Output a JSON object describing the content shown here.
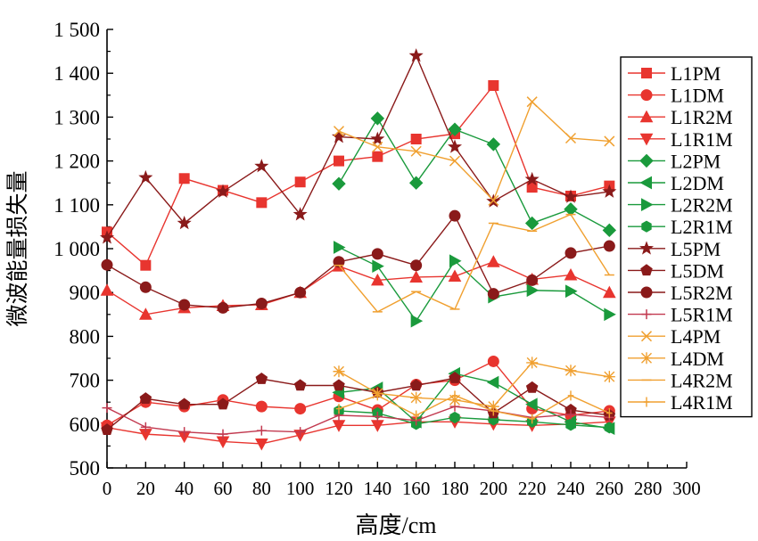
{
  "chart_data": {
    "type": "line",
    "title": "",
    "xlabel": "高度/cm",
    "ylabel": "微波能量损失量",
    "xlim": [
      0,
      300
    ],
    "ylim": [
      500,
      1500
    ],
    "x_ticks": [
      0,
      20,
      40,
      60,
      80,
      100,
      120,
      140,
      160,
      180,
      200,
      220,
      240,
      260,
      280,
      300
    ],
    "x_tick_labels": [
      "0",
      "20",
      "40",
      "60",
      "80",
      "100",
      "120",
      "140",
      "160",
      "180",
      "200",
      "220",
      "240",
      "260",
      "280",
      "300"
    ],
    "y_ticks": [
      500,
      600,
      700,
      800,
      900,
      1000,
      1100,
      1200,
      1300,
      1400,
      1500
    ],
    "y_tick_labels": [
      "500",
      "600",
      "700",
      "800",
      "900",
      "1 000",
      "1 100",
      "1 200",
      "1 300",
      "1 400",
      "1 500"
    ],
    "grid": false,
    "legend_position": "right",
    "series": [
      {
        "name": "L1PM",
        "color": "#e8352f",
        "marker": "square",
        "x": [
          0,
          20,
          40,
          60,
          80,
          100,
          120,
          140,
          160,
          180,
          200,
          220,
          240,
          260
        ],
        "y": [
          1038,
          962,
          1160,
          1133,
          1105,
          1152,
          1200,
          1210,
          1250,
          1262,
          1372,
          1140,
          1120,
          1143
        ]
      },
      {
        "name": "L1DM",
        "color": "#e8352f",
        "marker": "circle",
        "x": [
          0,
          20,
          40,
          60,
          80,
          100,
          120,
          140,
          160,
          180,
          200,
          220,
          240,
          260
        ],
        "y": [
          597,
          650,
          640,
          655,
          640,
          635,
          663,
          632,
          690,
          700,
          743,
          635,
          620,
          630
        ]
      },
      {
        "name": "L1R2M",
        "color": "#e8352f",
        "marker": "triangle-up",
        "x": [
          0,
          20,
          40,
          60,
          80,
          100,
          120,
          140,
          160,
          180,
          200,
          220,
          240,
          260
        ],
        "y": [
          905,
          850,
          865,
          870,
          872,
          900,
          960,
          928,
          935,
          937,
          970,
          930,
          940,
          900
        ]
      },
      {
        "name": "L1R1M",
        "color": "#e8352f",
        "marker": "triangle-down",
        "x": [
          0,
          20,
          40,
          60,
          80,
          100,
          120,
          140,
          160,
          180,
          200,
          220,
          240,
          260
        ],
        "y": [
          592,
          577,
          572,
          560,
          555,
          575,
          597,
          597,
          605,
          605,
          600,
          597,
          600,
          605
        ]
      },
      {
        "name": "L2PM",
        "color": "#1a9a3c",
        "marker": "diamond",
        "x": [
          120,
          140,
          160,
          180,
          200,
          220,
          240,
          260
        ],
        "y": [
          1148,
          1297,
          1150,
          1272,
          1238,
          1058,
          1090,
          1042
        ]
      },
      {
        "name": "L2DM",
        "color": "#1a9a3c",
        "marker": "triangle-left",
        "x": [
          120,
          140,
          160,
          180,
          200,
          220,
          240,
          260
        ],
        "y": [
          672,
          682,
          605,
          715,
          695,
          645,
          605,
          590
        ]
      },
      {
        "name": "L2R2M",
        "color": "#1a9a3c",
        "marker": "triangle-right",
        "x": [
          120,
          140,
          160,
          180,
          200,
          220,
          240,
          260
        ],
        "y": [
          1003,
          960,
          835,
          972,
          890,
          905,
          903,
          850
        ]
      },
      {
        "name": "L2R1M",
        "color": "#1a9a3c",
        "marker": "hexagon",
        "x": [
          120,
          140,
          160,
          180,
          200,
          220,
          240,
          260
        ],
        "y": [
          630,
          625,
          600,
          615,
          610,
          605,
          598,
          592
        ]
      },
      {
        "name": "L5PM",
        "color": "#8a1a1a",
        "marker": "star",
        "x": [
          0,
          20,
          40,
          60,
          80,
          100,
          120,
          140,
          160,
          180,
          200,
          220,
          240,
          260
        ],
        "y": [
          1025,
          1162,
          1058,
          1130,
          1188,
          1078,
          1255,
          1250,
          1440,
          1232,
          1108,
          1158,
          1118,
          1130
        ]
      },
      {
        "name": "L5DM",
        "color": "#8a1a1a",
        "marker": "pentagon",
        "x": [
          0,
          20,
          40,
          60,
          80,
          100,
          120,
          140,
          160,
          180,
          200,
          220,
          240,
          260
        ],
        "y": [
          587,
          658,
          645,
          645,
          703,
          688,
          688,
          672,
          688,
          705,
          625,
          683,
          632,
          620
        ]
      },
      {
        "name": "L5R2M",
        "color": "#8a1a1a",
        "marker": "circle",
        "x": [
          0,
          20,
          40,
          60,
          80,
          100,
          120,
          140,
          160,
          180,
          200,
          220,
          240,
          260
        ],
        "y": [
          963,
          912,
          872,
          865,
          875,
          900,
          970,
          988,
          962,
          1075,
          897,
          928,
          990,
          1006
        ]
      },
      {
        "name": "L5R1M",
        "color": "#c23a50",
        "marker": "plus",
        "x": [
          0,
          20,
          40,
          60,
          80,
          100,
          120,
          140,
          160,
          180,
          200,
          220,
          240,
          260
        ],
        "y": [
          637,
          593,
          582,
          577,
          585,
          582,
          620,
          617,
          608,
          640,
          630,
          615,
          622,
          615
        ]
      },
      {
        "name": "L4PM",
        "color": "#f0a030",
        "marker": "x",
        "x": [
          120,
          140,
          160,
          180,
          200,
          220,
          240,
          260
        ],
        "y": [
          1268,
          1232,
          1222,
          1200,
          1110,
          1335,
          1252,
          1245
        ]
      },
      {
        "name": "L4DM",
        "color": "#f0a030",
        "marker": "asterisk",
        "x": [
          120,
          140,
          160,
          180,
          200,
          220,
          240,
          260
        ],
        "y": [
          720,
          670,
          660,
          655,
          640,
          740,
          722,
          708
        ]
      },
      {
        "name": "L4R2M",
        "color": "#f0a030",
        "marker": "dash",
        "x": [
          120,
          140,
          160,
          180,
          200,
          220,
          240,
          260
        ],
        "y": [
          962,
          856,
          902,
          862,
          1058,
          1040,
          1078,
          940
        ]
      },
      {
        "name": "L4R1M",
        "color": "#f0a030",
        "marker": "vline",
        "x": [
          120,
          140,
          160,
          180,
          200,
          220,
          240,
          260
        ],
        "y": [
          635,
          665,
          620,
          665,
          630,
          612,
          665,
          625
        ]
      }
    ]
  }
}
